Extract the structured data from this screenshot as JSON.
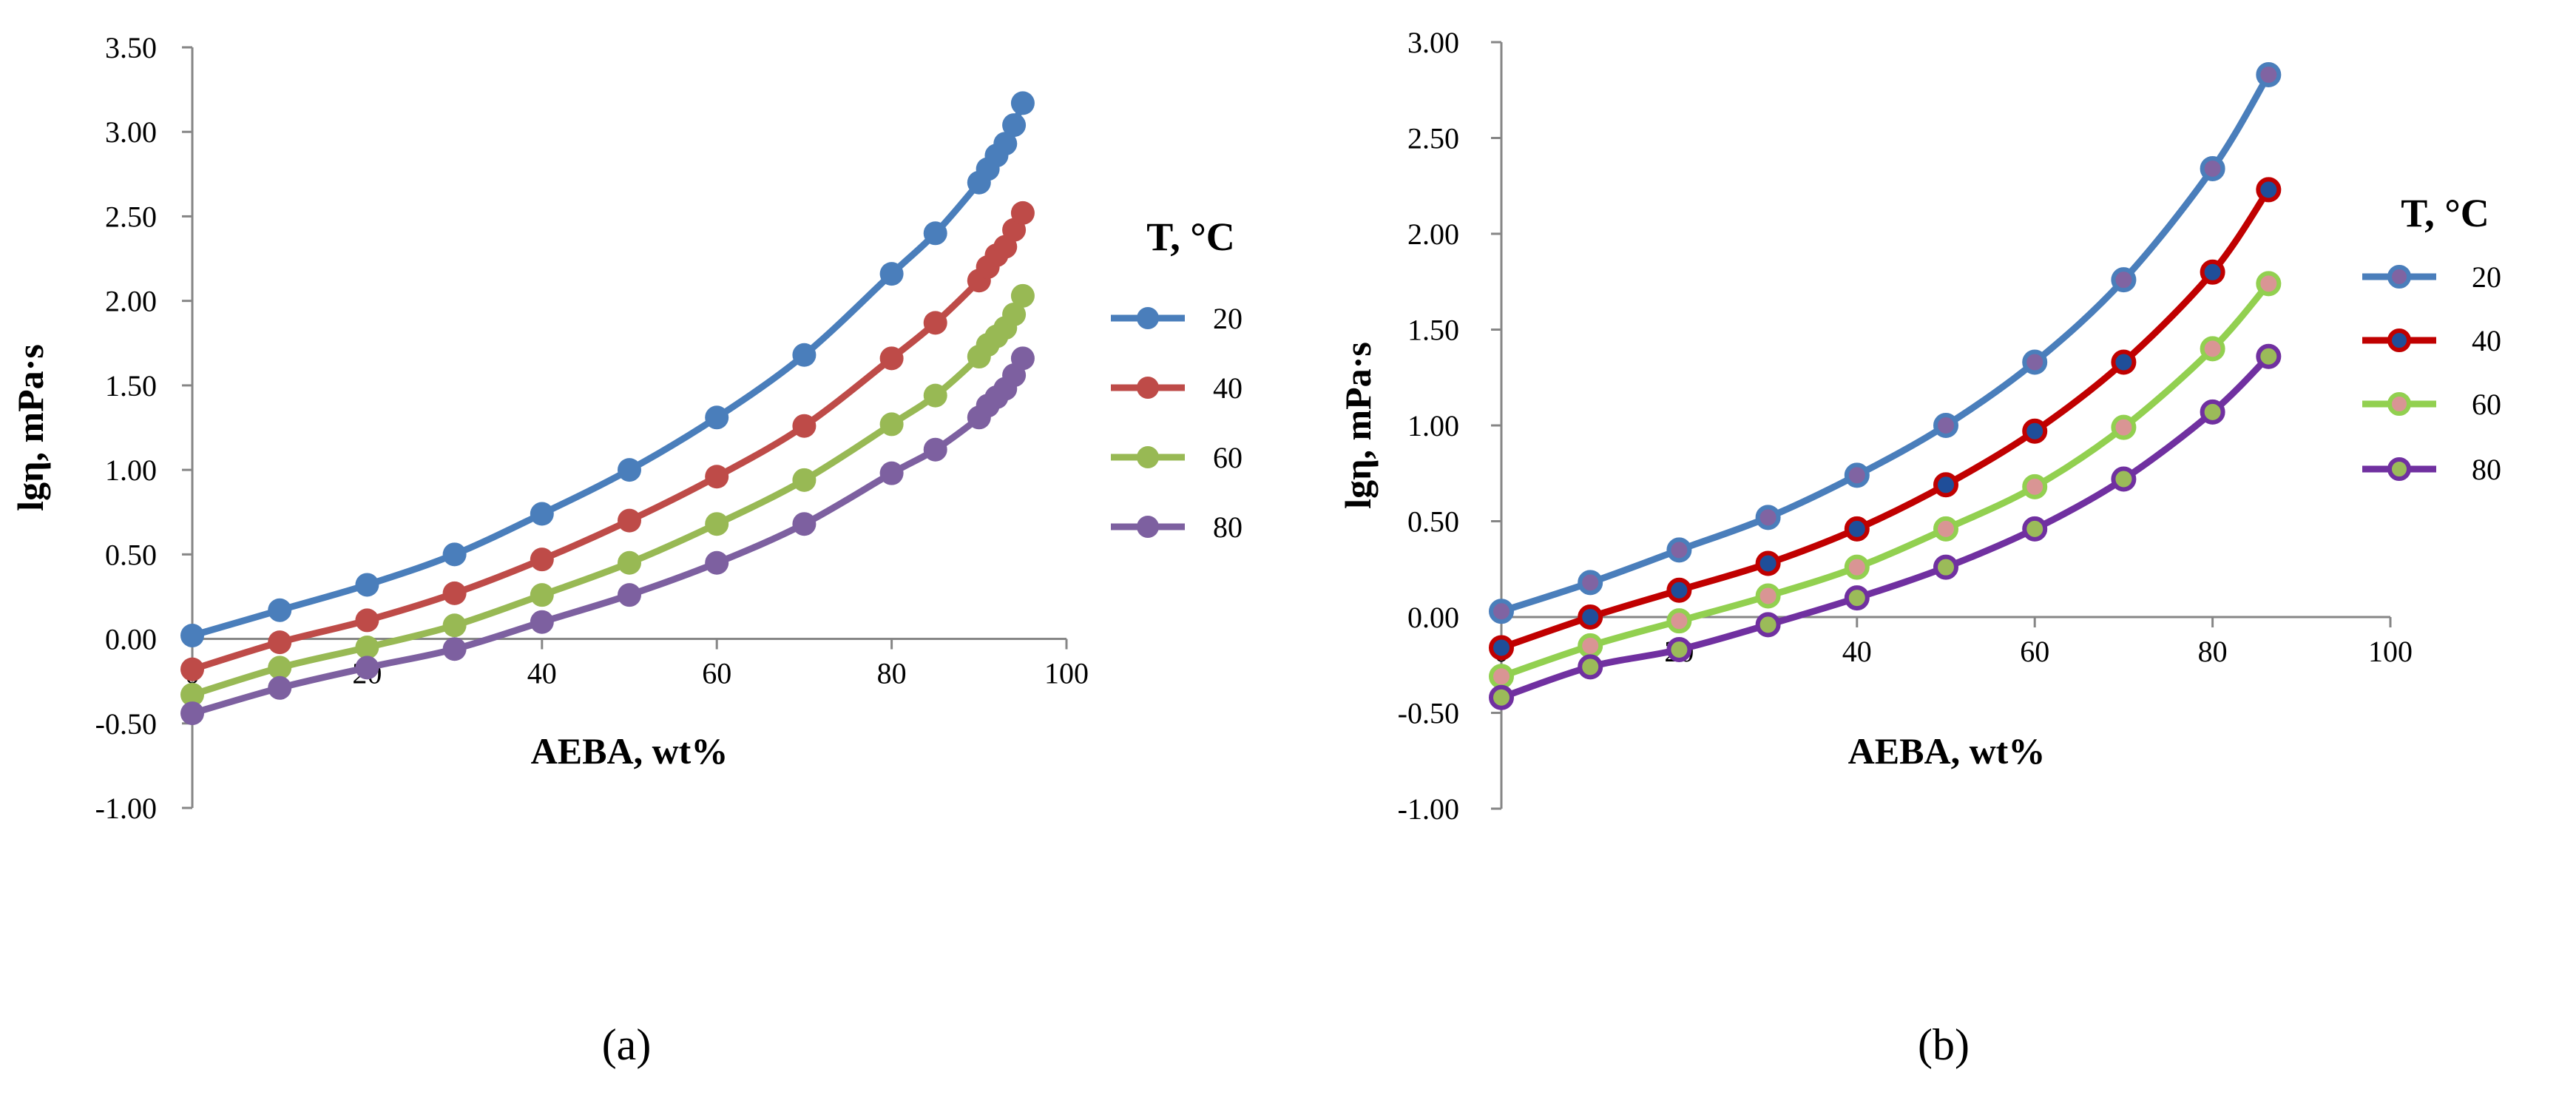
{
  "chart_data": [
    {
      "type": "line",
      "panel_label": "(a)",
      "xlabel": "AEBA, wt%",
      "ylabel": "lgη, mPa·s",
      "xlim": [
        0,
        100
      ],
      "ylim": [
        -1.0,
        3.5
      ],
      "x_ticks": [
        "0",
        "20",
        "40",
        "60",
        "80",
        "100"
      ],
      "y_ticks": [
        "-1.00",
        "-0.50",
        "0.00",
        "0.50",
        "1.00",
        "1.50",
        "2.00",
        "2.50",
        "3.00",
        "3.50"
      ],
      "legend_title": "T, °C",
      "marker_style": "solid",
      "series": [
        {
          "name": "20",
          "color": "#4a7ebb",
          "x": [
            0,
            10,
            20,
            30,
            40,
            50,
            60,
            70,
            80,
            85,
            90,
            91,
            92,
            93,
            94,
            95
          ],
          "y": [
            0.02,
            0.17,
            0.32,
            0.5,
            0.74,
            1.0,
            1.31,
            1.68,
            2.16,
            2.4,
            2.7,
            2.78,
            2.86,
            2.93,
            3.04,
            3.17
          ]
        },
        {
          "name": "40",
          "color": "#be4b48",
          "x": [
            0,
            10,
            20,
            30,
            40,
            50,
            60,
            70,
            80,
            85,
            90,
            91,
            92,
            93,
            94,
            95
          ],
          "y": [
            -0.18,
            -0.02,
            0.11,
            0.27,
            0.47,
            0.7,
            0.96,
            1.26,
            1.66,
            1.87,
            2.12,
            2.2,
            2.27,
            2.32,
            2.42,
            2.52
          ]
        },
        {
          "name": "60",
          "color": "#98b954",
          "x": [
            0,
            10,
            20,
            30,
            40,
            50,
            60,
            70,
            80,
            85,
            90,
            91,
            92,
            93,
            94,
            95
          ],
          "y": [
            -0.33,
            -0.17,
            -0.05,
            0.08,
            0.26,
            0.45,
            0.68,
            0.94,
            1.27,
            1.44,
            1.67,
            1.74,
            1.79,
            1.84,
            1.92,
            2.03
          ]
        },
        {
          "name": "80",
          "color": "#7d60a0",
          "x": [
            0,
            10,
            20,
            30,
            40,
            50,
            60,
            70,
            80,
            85,
            90,
            91,
            92,
            93,
            94,
            95
          ],
          "y": [
            -0.44,
            -0.29,
            -0.17,
            -0.06,
            0.1,
            0.26,
            0.45,
            0.68,
            0.98,
            1.12,
            1.31,
            1.38,
            1.43,
            1.48,
            1.56,
            1.66
          ]
        }
      ]
    },
    {
      "type": "line",
      "panel_label": "(b)",
      "xlabel": "AEBA, wt%",
      "ylabel": "lgη, mPa·s",
      "xlim": [
        0,
        100
      ],
      "ylim": [
        -1.0,
        3.0
      ],
      "x_ticks": [
        "0",
        "20",
        "40",
        "60",
        "80",
        "100"
      ],
      "y_ticks": [
        "-1.00",
        "-0.50",
        "0.00",
        "0.50",
        "1.00",
        "1.50",
        "2.00",
        "2.50",
        "3.00"
      ],
      "legend_title": "T, °C",
      "marker_style": "ringed",
      "series": [
        {
          "name": "20",
          "color": "#4a7ebb",
          "marker_fill": "#8064a2",
          "x": [
            0,
            10,
            20,
            30,
            40,
            50,
            60,
            70,
            80,
            86.3
          ],
          "y": [
            0.03,
            0.18,
            0.35,
            0.52,
            0.74,
            1.0,
            1.33,
            1.76,
            2.34,
            2.83
          ]
        },
        {
          "name": "40",
          "color": "#c00000",
          "marker_fill": "#1f4e99",
          "x": [
            0,
            10,
            20,
            30,
            40,
            50,
            60,
            70,
            80,
            86.3
          ],
          "y": [
            -0.16,
            0.0,
            0.14,
            0.28,
            0.46,
            0.69,
            0.97,
            1.33,
            1.8,
            2.23
          ]
        },
        {
          "name": "60",
          "color": "#92d050",
          "marker_fill": "#d99594",
          "x": [
            0,
            10,
            20,
            30,
            40,
            50,
            60,
            70,
            80,
            86.3
          ],
          "y": [
            -0.31,
            -0.15,
            -0.02,
            0.11,
            0.26,
            0.46,
            0.68,
            0.99,
            1.4,
            1.74
          ]
        },
        {
          "name": "80",
          "color": "#7030a0",
          "marker_fill": "#9bbb59",
          "x": [
            0,
            10,
            20,
            30,
            40,
            50,
            60,
            70,
            80,
            86.3
          ],
          "y": [
            -0.42,
            -0.26,
            -0.17,
            -0.04,
            0.1,
            0.26,
            0.46,
            0.72,
            1.07,
            1.36
          ]
        }
      ]
    }
  ]
}
